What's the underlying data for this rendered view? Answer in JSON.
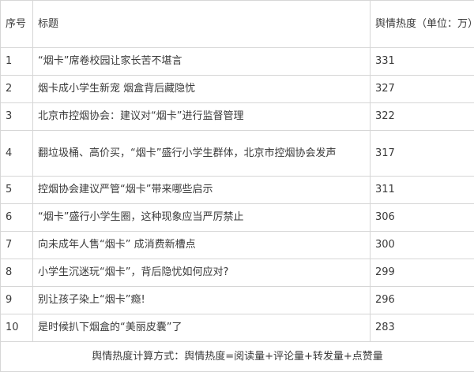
{
  "header": {
    "index": "序号",
    "title": "标题",
    "heat": "舆情热度（单位：万）"
  },
  "rows": [
    {
      "index": "1",
      "title": "“烟卡”席卷校园让家长苦不堪言",
      "heat": "331"
    },
    {
      "index": "2",
      "title": "烟卡成小学生新宠 烟盒背后藏隐忧",
      "heat": "327"
    },
    {
      "index": "3",
      "title": "北京市控烟协会：建议对“烟卡”进行监督管理",
      "heat": "322"
    },
    {
      "index": "4",
      "title": "翻垃圾桶、高价买，“烟卡”盛行小学生群体，北京市控烟协会发声",
      "heat": "317"
    },
    {
      "index": "5",
      "title": "控烟协会建议严管“烟卡”带来哪些启示",
      "heat": "311"
    },
    {
      "index": "6",
      "title": "“烟卡”盛行小学生圈，这种现象应当严厉禁止",
      "heat": "306"
    },
    {
      "index": "7",
      "title": "向未成年人售“烟卡” 成消费新槽点",
      "heat": "300"
    },
    {
      "index": "8",
      "title": "小学生沉迷玩“烟卡”，背后隐忧如何应对?",
      "heat": "299"
    },
    {
      "index": "9",
      "title": "别让孩子染上“烟卡”瘾!",
      "heat": "296"
    },
    {
      "index": "10",
      "title": "是时候扒下烟盒的“美丽皮囊”了",
      "heat": "283"
    }
  ],
  "footer": "舆情热度计算方式：舆情热度=阅读量+评论量+转发量+点赞量"
}
